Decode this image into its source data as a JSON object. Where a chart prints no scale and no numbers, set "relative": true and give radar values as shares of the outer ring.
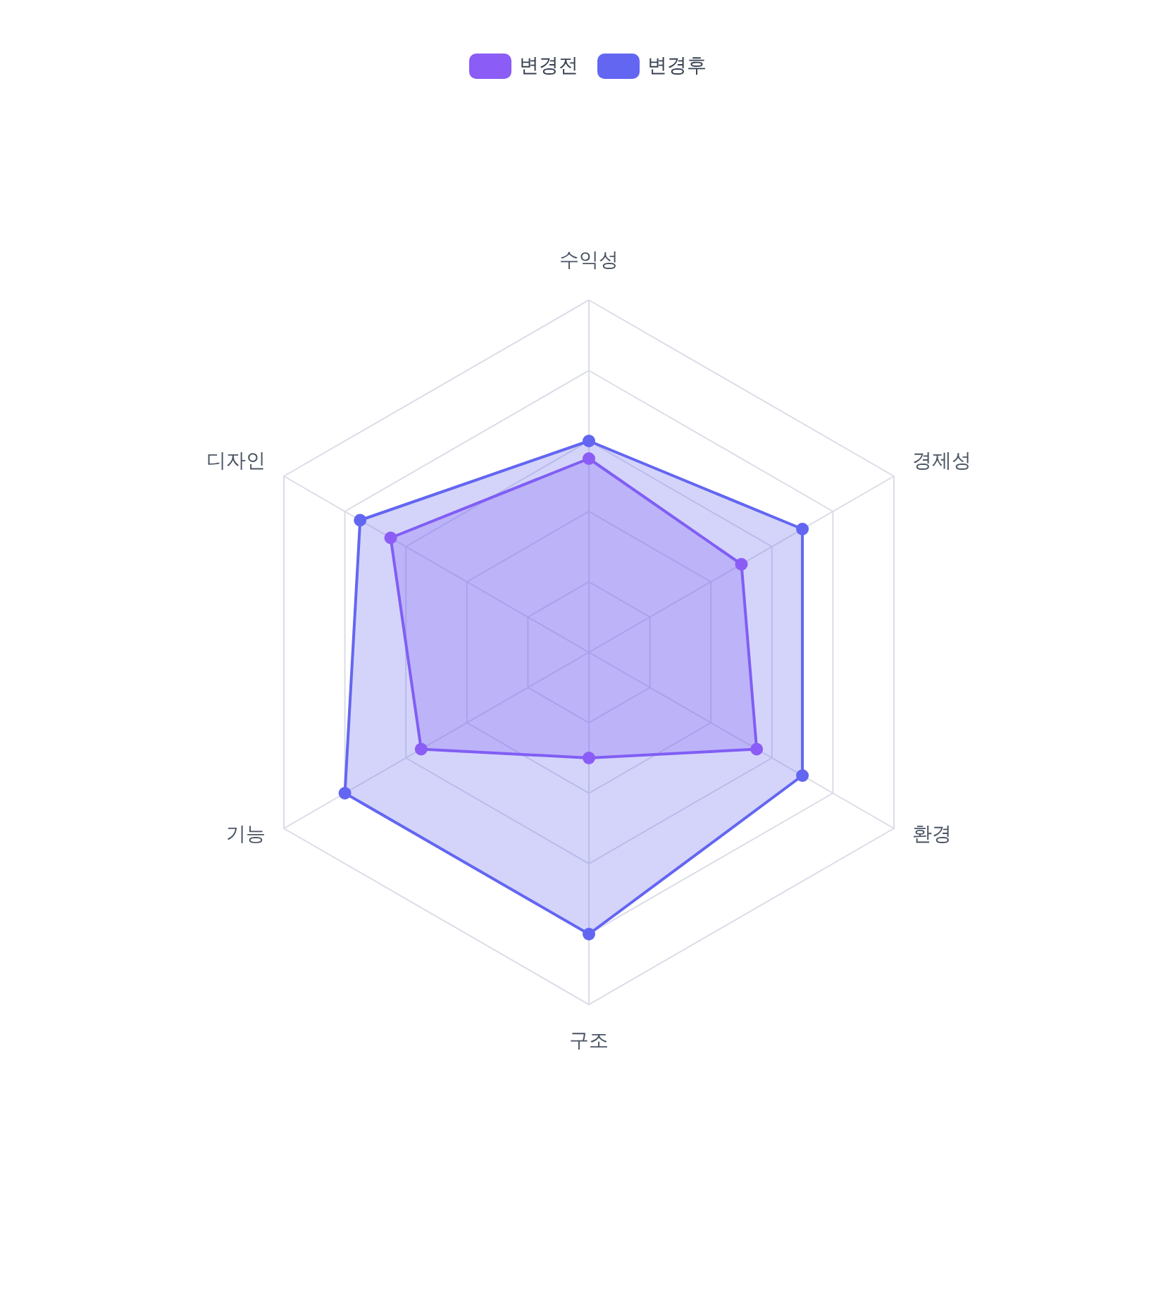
{
  "chart_data": {
    "type": "radar",
    "relative": true,
    "categories": [
      "수익성",
      "경제성",
      "환경",
      "구조",
      "기능",
      "디자인"
    ],
    "series": [
      {
        "name": "변경전",
        "color": "#8b5cf6",
        "values": [
          0.55,
          0.5,
          0.55,
          0.3,
          0.55,
          0.65
        ]
      },
      {
        "name": "변경후",
        "color": "#6366f1",
        "values": [
          0.6,
          0.7,
          0.7,
          0.8,
          0.8,
          0.75
        ]
      }
    ],
    "legend": "top",
    "grid": true,
    "marker": "circle",
    "line_style": "solid"
  }
}
